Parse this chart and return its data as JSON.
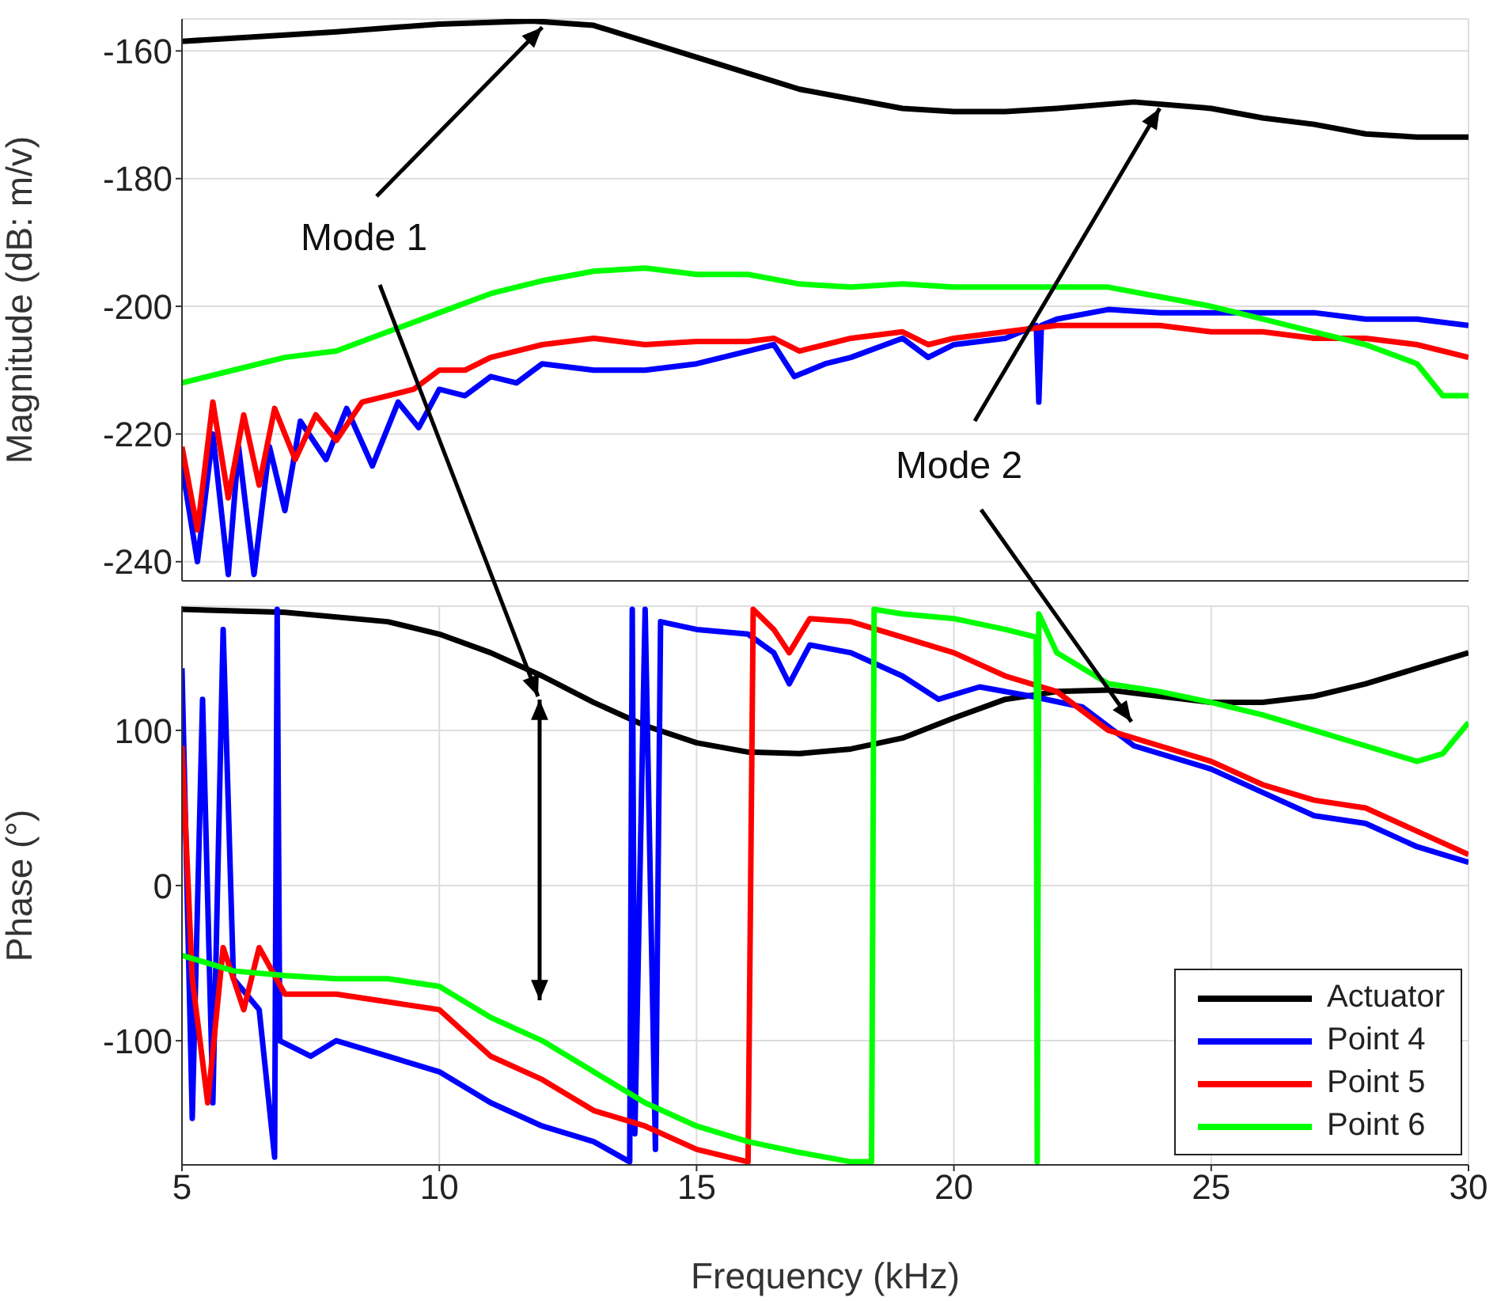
{
  "chart_data": [
    {
      "type": "line",
      "ylabel": "Magnitude (dB: m/v)",
      "xlim": [
        5,
        30
      ],
      "xticks": [
        5,
        10,
        15,
        20,
        25,
        30
      ],
      "ylim": [
        -243,
        -155
      ],
      "yticks": [
        -240,
        -220,
        -200,
        -180,
        -160
      ],
      "grid": true,
      "tick_labels": "y",
      "annotations": [
        {
          "text": "Mode 1",
          "x": 12,
          "y": -155.3
        },
        {
          "text": "Mode 2",
          "x": 24,
          "y": -168
        }
      ],
      "series": [
        {
          "color": "#000000",
          "x": [
            5,
            8,
            10,
            11.8,
            13,
            15,
            17,
            19,
            20,
            21,
            22,
            23.5,
            25,
            26,
            27,
            28,
            29,
            30
          ],
          "values": [
            -158.5,
            -157,
            -155.8,
            -155.3,
            -156,
            -161,
            -166,
            -169,
            -169.5,
            -169.5,
            -169,
            -168,
            -169,
            -170.5,
            -171.5,
            -173,
            -173.5,
            -173.5
          ]
        },
        {
          "color": "#0000ff",
          "x": [
            5,
            5.3,
            5.6,
            5.9,
            6.1,
            6.4,
            6.7,
            7,
            7.3,
            7.8,
            8.2,
            8.7,
            9.2,
            9.6,
            10,
            10.5,
            11,
            11.5,
            12,
            13,
            14,
            15,
            16,
            16.5,
            16.9,
            17.5,
            18,
            19,
            19.5,
            20,
            21,
            21.6,
            21.65,
            21.7,
            22,
            23,
            24,
            25,
            26,
            27,
            28,
            29,
            30
          ],
          "values": [
            -225,
            -240,
            -220,
            -242,
            -222,
            -242,
            -222,
            -232,
            -218,
            -224,
            -216,
            -225,
            -215,
            -219,
            -213,
            -214,
            -211,
            -212,
            -209,
            -210,
            -210,
            -209,
            -207,
            -206,
            -211,
            -209,
            -208,
            -205,
            -208,
            -206,
            -205,
            -203,
            -215,
            -203,
            -202,
            -200.5,
            -201,
            -201,
            -201,
            -201,
            -202,
            -202,
            -203
          ]
        },
        {
          "color": "#ff0000",
          "x": [
            5,
            5.3,
            5.6,
            5.9,
            6.2,
            6.5,
            6.8,
            7.2,
            7.6,
            8,
            8.5,
            9,
            9.5,
            10,
            10.5,
            11,
            11.5,
            12,
            13,
            14,
            15,
            16,
            16.5,
            17,
            17.5,
            18,
            19,
            19.5,
            20,
            21,
            22,
            23,
            24,
            25,
            26,
            27,
            28,
            29,
            30
          ],
          "values": [
            -222,
            -235,
            -215,
            -230,
            -217,
            -228,
            -216,
            -224,
            -217,
            -221,
            -215,
            -214,
            -213,
            -210,
            -210,
            -208,
            -207,
            -206,
            -205,
            -206,
            -205.5,
            -205.5,
            -205,
            -207,
            -206,
            -205,
            -204,
            -206,
            -205,
            -204,
            -203,
            -203,
            -203,
            -204,
            -204,
            -205,
            -205,
            -206,
            -208
          ]
        },
        {
          "color": "#00ff00",
          "x": [
            5,
            6,
            7,
            8,
            9,
            10,
            11,
            12,
            13,
            14,
            15,
            16,
            17,
            18,
            19,
            20,
            21,
            22,
            23,
            24,
            25,
            26,
            27,
            28,
            29,
            29.5,
            30
          ],
          "values": [
            -212,
            -210,
            -208,
            -207,
            -204,
            -201,
            -198,
            -196,
            -194.5,
            -194,
            -195,
            -195,
            -196.5,
            -197,
            -196.5,
            -197,
            -197,
            -197,
            -197,
            -198.5,
            -200,
            -202,
            -204,
            -206,
            -209,
            -214,
            -214
          ]
        }
      ]
    },
    {
      "type": "line",
      "xlabel": "Frequency (kHz)",
      "ylabel": "Phase (°)",
      "xlim": [
        5,
        30
      ],
      "xticks": [
        5,
        10,
        15,
        20,
        25,
        30
      ],
      "ylim": [
        -180,
        180
      ],
      "yticks": [
        -100,
        0,
        100
      ],
      "grid": true,
      "legend": "bottom right",
      "series": [
        {
          "name": "Actuator",
          "color": "#000000",
          "x": [
            5,
            7,
            9,
            10,
            11,
            12,
            13,
            14,
            15,
            16,
            17,
            18,
            19,
            20,
            21,
            22,
            23,
            24,
            25,
            26,
            27,
            28,
            29,
            30
          ],
          "values": [
            178,
            176,
            170,
            162,
            150,
            135,
            118,
            103,
            92,
            86,
            85,
            88,
            95,
            108,
            120,
            125,
            126,
            122,
            118,
            118,
            122,
            130,
            140,
            150
          ]
        },
        {
          "name": "Point 4",
          "color": "#0000ff",
          "x": [
            5,
            5.2,
            5.4,
            5.6,
            5.8,
            6,
            6.5,
            6.8,
            6.85,
            6.9,
            7.5,
            8,
            9,
            10,
            11,
            12,
            13,
            13.7,
            13.75,
            13.8,
            14,
            14.2,
            14.3,
            15,
            16,
            16.5,
            16.8,
            17.2,
            18,
            19,
            19.7,
            20.5,
            21.5,
            22.5,
            23.5,
            25,
            26,
            27,
            28,
            29,
            30
          ],
          "values": [
            140,
            -150,
            120,
            -140,
            165,
            -60,
            -80,
            -175,
            178,
            -100,
            -110,
            -100,
            -110,
            -120,
            -140,
            -155,
            -165,
            -178,
            178,
            -160,
            178,
            -170,
            170,
            165,
            162,
            150,
            130,
            155,
            150,
            135,
            120,
            128,
            122,
            115,
            90,
            75,
            60,
            45,
            40,
            25,
            15
          ]
        },
        {
          "name": "Point 5",
          "color": "#ff0000",
          "x": [
            5,
            5.2,
            5.5,
            5.8,
            6.2,
            6.5,
            7,
            8,
            9,
            10,
            11,
            12,
            13,
            14,
            15,
            16,
            16.1,
            16.5,
            16.8,
            17.2,
            18,
            19,
            20,
            21,
            22,
            23,
            24,
            25,
            26,
            27,
            28,
            29,
            30
          ],
          "values": [
            90,
            -60,
            -140,
            -40,
            -80,
            -40,
            -70,
            -70,
            -75,
            -80,
            -110,
            -125,
            -145,
            -155,
            -170,
            -178,
            178,
            165,
            150,
            172,
            170,
            160,
            150,
            135,
            125,
            100,
            90,
            80,
            65,
            55,
            50,
            35,
            20
          ]
        },
        {
          "name": "Point 6",
          "color": "#00ff00",
          "x": [
            5,
            6,
            7,
            8,
            9,
            10,
            11,
            12,
            13,
            14,
            15,
            16,
            17,
            18,
            18.4,
            18.45,
            19,
            20,
            21,
            21.6,
            21.62,
            21.65,
            22,
            23,
            24,
            25,
            26,
            27,
            28,
            29,
            29.5,
            30
          ],
          "values": [
            -45,
            -55,
            -58,
            -60,
            -60,
            -65,
            -85,
            -100,
            -120,
            -140,
            -155,
            -165,
            -172,
            -178,
            -178,
            178,
            175,
            172,
            165,
            160,
            -178,
            175,
            150,
            130,
            125,
            118,
            110,
            100,
            90,
            80,
            85,
            105
          ]
        }
      ]
    }
  ]
}
